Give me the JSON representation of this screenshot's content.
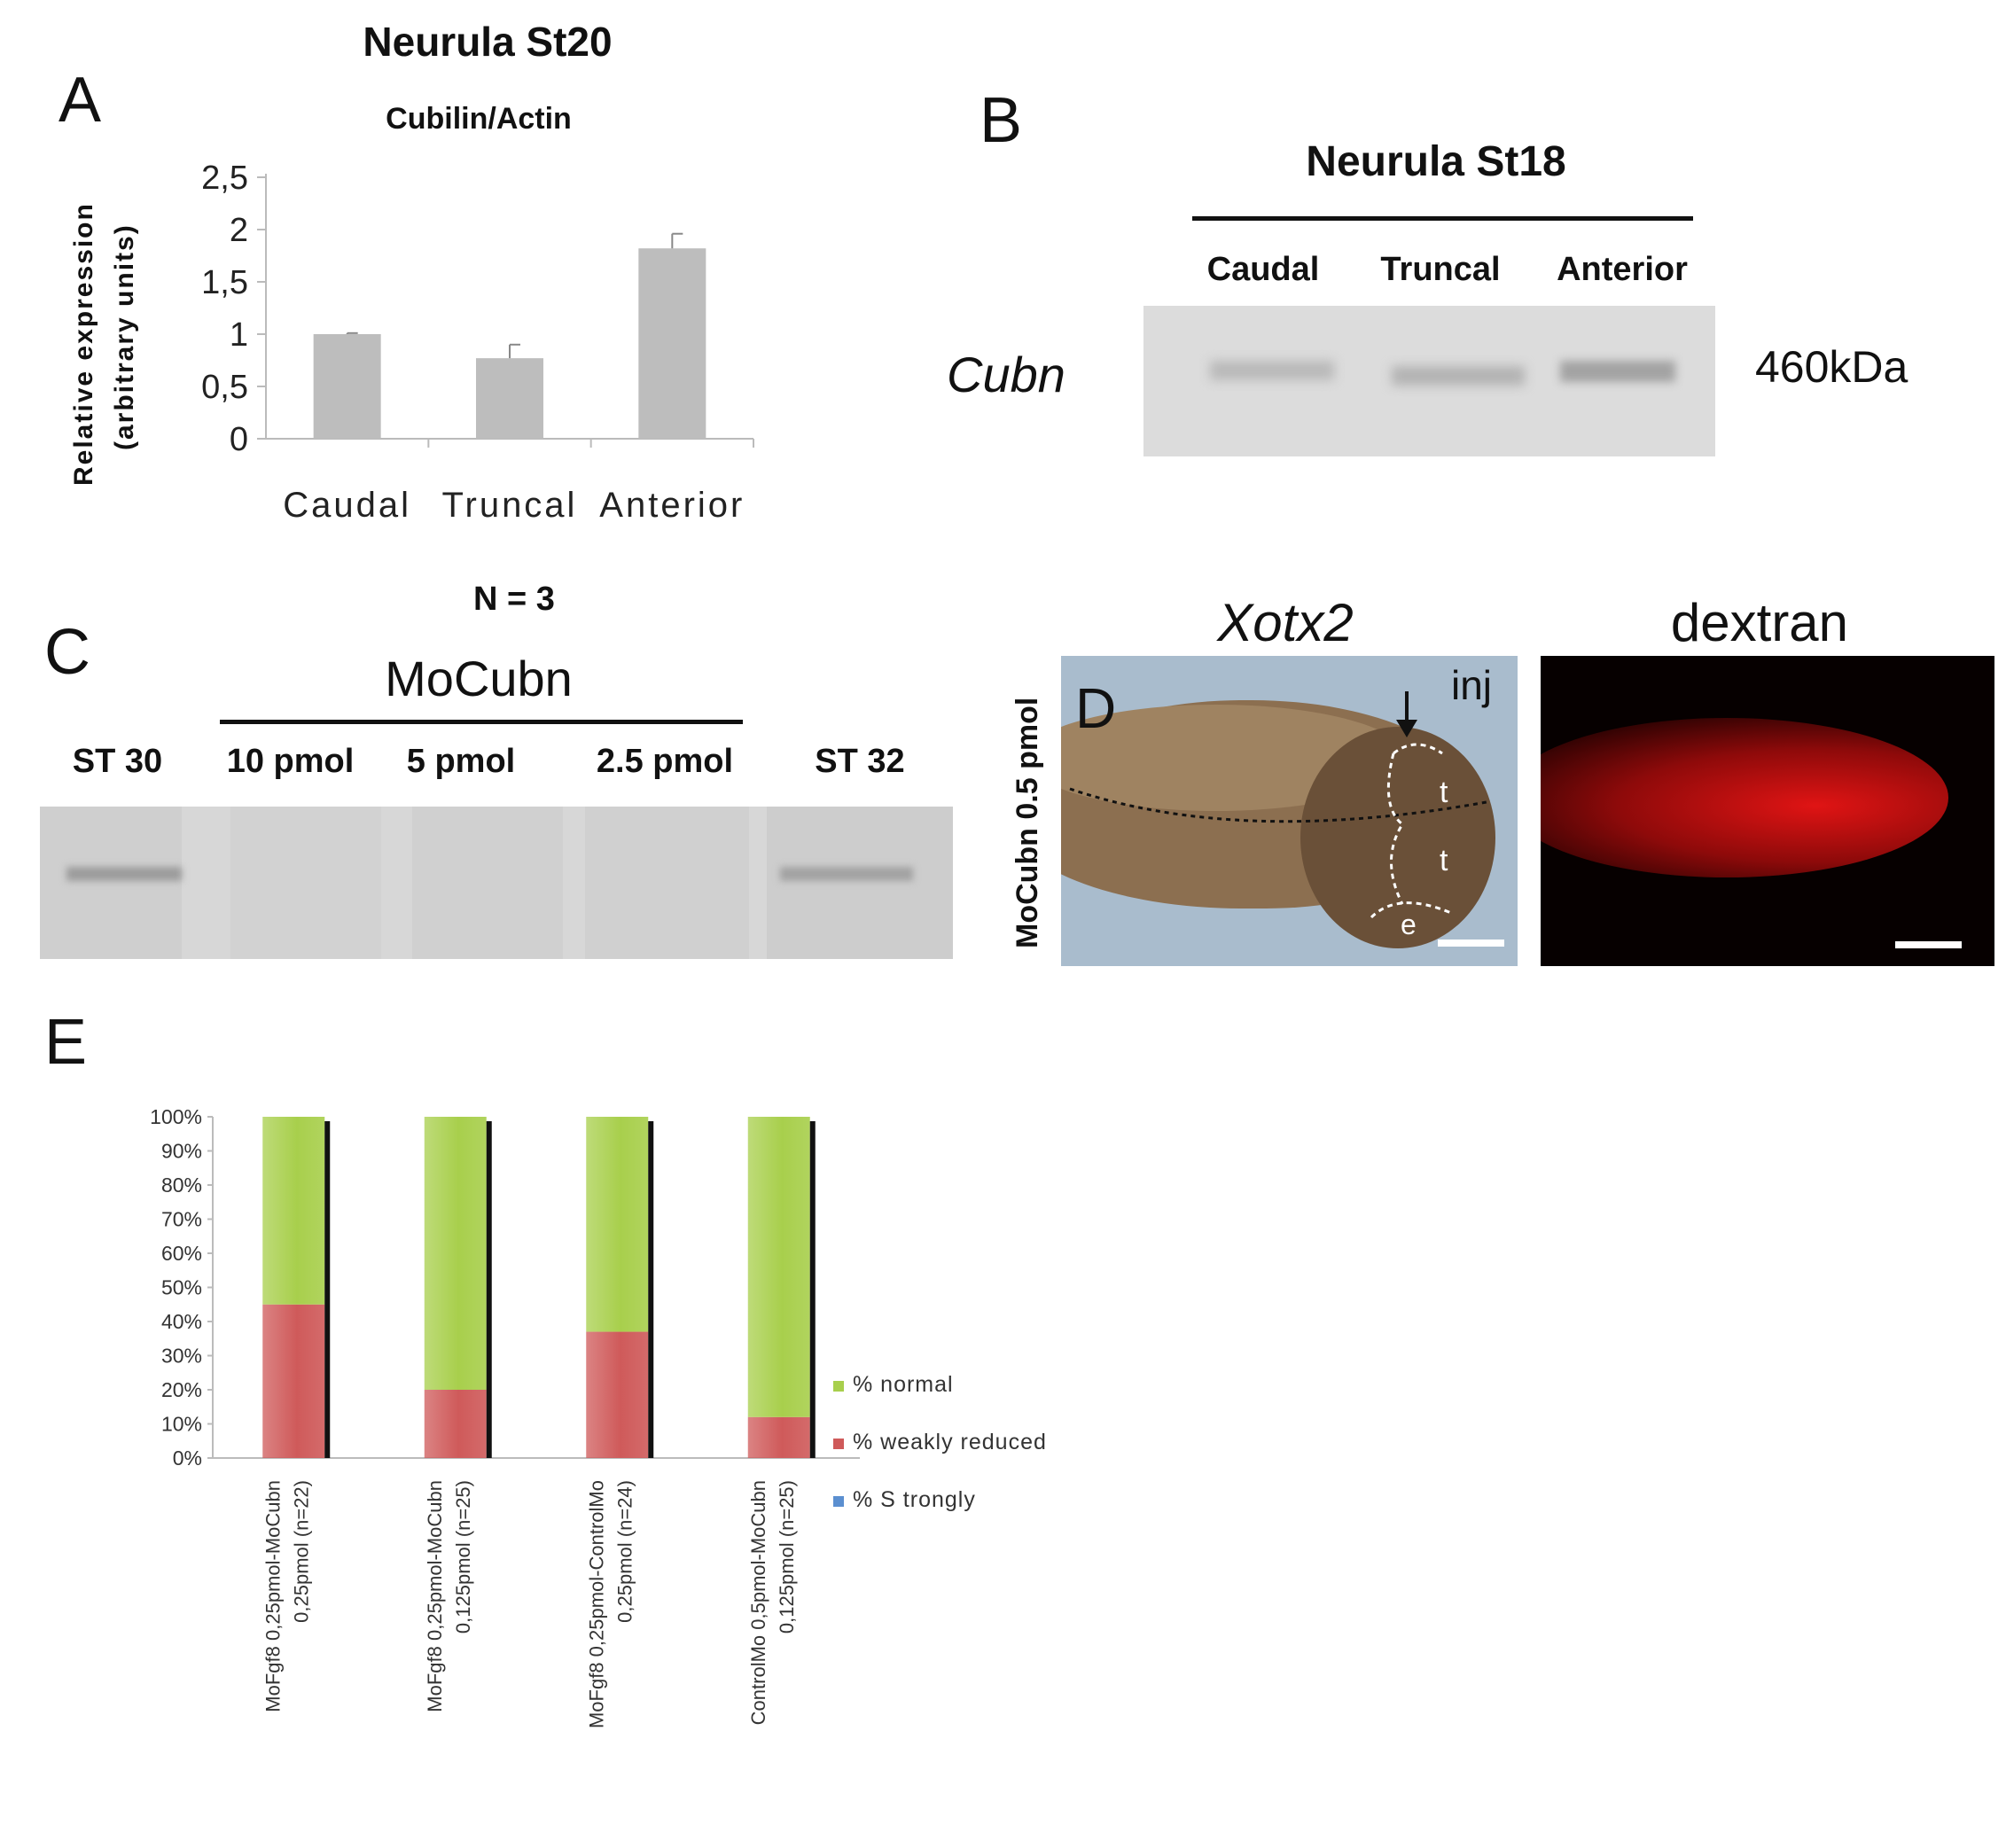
{
  "panelA": {
    "letter": "A",
    "title": "Neurula St20",
    "subtitle": "Cubilin/Actin",
    "ylabel_line1": "Relative expression",
    "ylabel_line2": "(arbitrary units)",
    "note": "N = 3",
    "chart_data": {
      "type": "bar",
      "title": "Neurula St20",
      "subtitle": "Cubilin/Actin",
      "ylabel": "Relative expression (arbitrary units)",
      "categories": [
        "Caudal",
        "Truncal",
        "Anterior"
      ],
      "values": [
        1.0,
        0.77,
        1.82
      ],
      "errors": [
        0.01,
        0.13,
        0.14
      ],
      "yticks": [
        "0",
        "0,5",
        "1",
        "1,5",
        "2",
        "2,5"
      ],
      "ylim": [
        0,
        2.5
      ],
      "bar_color": "#bdbdbd"
    }
  },
  "panelB": {
    "letter": "B",
    "title": "Neurula St18",
    "lanes": [
      "Caudal",
      "Truncal",
      "Anterior"
    ],
    "protein": "Cubn",
    "size": "460kDa"
  },
  "panelC": {
    "letter": "C",
    "group_label": "MoCubn",
    "lanes": [
      "ST 30",
      "10 pmol",
      "5 pmol",
      "2.5 pmol",
      "ST 32"
    ]
  },
  "panelD": {
    "letter": "D",
    "label_left": "Xotx2",
    "label_right": "dextran",
    "side_label": "MoCubn 0.5 pmol",
    "inj": "inj",
    "region_t1": "t",
    "region_t2": "t",
    "region_e": "e"
  },
  "panelE": {
    "letter": "E",
    "chart_data": {
      "type": "bar",
      "stacked": true,
      "categories": [
        [
          "MoFgf8 0,25pmol-MoCubn",
          "0,25pmol (n=22)"
        ],
        [
          "MoFgf8 0,25pmol-MoCubn",
          "0,125pmol (n=25)"
        ],
        [
          "MoFgf8 0,25pmol-ControlMo",
          "0,25pmol (n=24)"
        ],
        [
          "ControlMo 0,5pmol-MoCubn",
          "0,125pmol (n=25)"
        ]
      ],
      "series": [
        {
          "name": "% Strongly",
          "values": [
            0,
            0,
            0,
            0
          ],
          "color": "#5b8fd0"
        },
        {
          "name": "% weakly reduced",
          "values": [
            45,
            20,
            37,
            12
          ],
          "color": "#cf5a5a"
        },
        {
          "name": "% normal",
          "values": [
            55,
            80,
            63,
            88
          ],
          "color": "#a8cf4c"
        }
      ],
      "yticks": [
        "0%",
        "10%",
        "20%",
        "30%",
        "40%",
        "50%",
        "60%",
        "70%",
        "80%",
        "90%",
        "100%"
      ],
      "ylim": [
        0,
        100
      ],
      "legend_position": "right",
      "legend_order": [
        "% normal",
        "% weakly reduced",
        "% S trongly"
      ]
    }
  }
}
